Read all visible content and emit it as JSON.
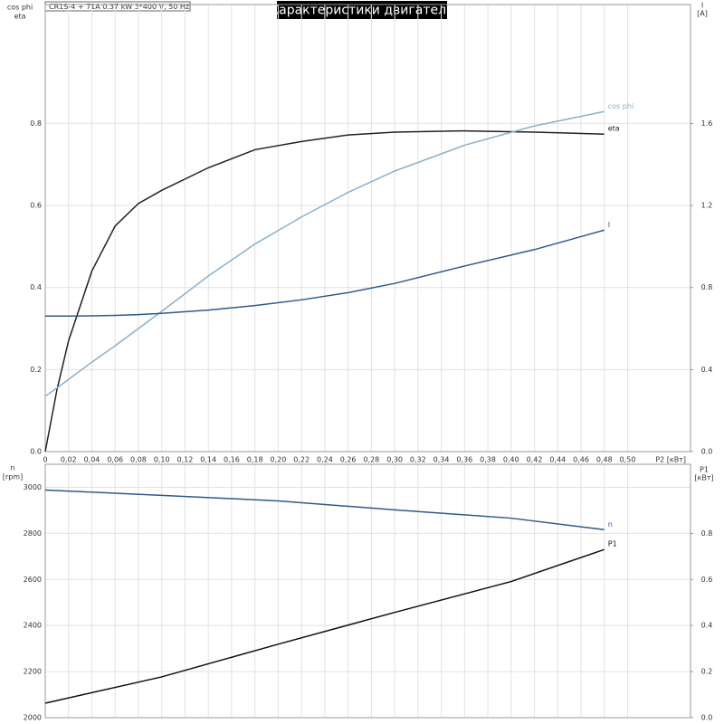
{
  "chart_data": [
    {
      "type": "line",
      "header": "CR1S-4 + 71A   0.37 kW   3*400 V, 50 Hz",
      "title": "Характеристики двигателя",
      "ylabel": [
        "cos phi",
        "eta"
      ],
      "y2label": [
        "I",
        "[A]"
      ],
      "xlabel": "P2 [кВт]",
      "x": [
        0,
        0.01,
        0.02,
        0.04,
        0.06,
        0.08,
        0.1,
        0.14,
        0.18,
        0.22,
        0.26,
        0.3,
        0.36,
        0.42,
        0.48
      ],
      "series": [
        {
          "name": "eta",
          "color": "#222222",
          "values": [
            0,
            0.15,
            0.27,
            0.44,
            0.55,
            0.605,
            0.637,
            0.692,
            0.736,
            0.756,
            0.772,
            0.779,
            0.782,
            0.779,
            0.774
          ]
        },
        {
          "name": "cos phi",
          "color": "#8ab0cc",
          "values": [
            0.135,
            0.155,
            0.176,
            0.218,
            0.258,
            0.3,
            0.342,
            0.428,
            0.506,
            0.572,
            0.632,
            0.684,
            0.747,
            0.794,
            0.829
          ]
        },
        {
          "name": "I",
          "color": "#2e5a8a",
          "axis": "y2",
          "values": [
            0.661,
            0.661,
            0.661,
            0.662,
            0.664,
            0.668,
            0.674,
            0.69,
            0.712,
            0.74,
            0.775,
            0.82,
            0.905,
            0.985,
            1.08
          ]
        }
      ],
      "xlim": [
        0,
        0.554
      ],
      "xticks": [
        0,
        {
          "value": 0.02,
          "label": "0,02"
        },
        {
          "value": 0.04,
          "label": "0,04"
        },
        {
          "value": 0.06,
          "label": "0,06"
        },
        {
          "value": 0.08,
          "label": "0,08"
        },
        {
          "value": 0.1,
          "label": "0,10"
        },
        {
          "value": 0.12,
          "label": "0,12"
        },
        {
          "value": 0.14,
          "label": "0,14"
        },
        {
          "value": 0.16,
          "label": "0,16"
        },
        {
          "value": 0.18,
          "label": "0,18"
        },
        {
          "value": 0.2,
          "label": "0,20"
        },
        {
          "value": 0.22,
          "label": "0,22"
        },
        {
          "value": 0.24,
          "label": "0,24"
        },
        {
          "value": 0.26,
          "label": "0,26"
        },
        {
          "value": 0.28,
          "label": "0,28"
        },
        {
          "value": 0.3,
          "label": "0,30"
        },
        {
          "value": 0.32,
          "label": "0,32"
        },
        {
          "value": 0.34,
          "label": "0,34"
        },
        {
          "value": 0.36,
          "label": "0,36"
        },
        {
          "value": 0.38,
          "label": "0,38"
        },
        {
          "value": 0.4,
          "label": "0,40"
        },
        {
          "value": 0.42,
          "label": "0,42"
        },
        {
          "value": 0.44,
          "label": "0,44"
        },
        {
          "value": 0.46,
          "label": "0,46"
        },
        {
          "value": 0.48,
          "label": "0,48"
        },
        {
          "value": 0.5,
          "label": "0,50"
        }
      ],
      "ylim": [
        0,
        1.09
      ],
      "yticks": [
        {
          "value": 0,
          "label": "0.0"
        },
        0.2,
        0.4,
        0.6,
        0.8
      ],
      "y2lim": [
        0,
        2.18
      ],
      "y2ticks": [
        {
          "value": 0,
          "label": "0.0"
        },
        0.4,
        0.8,
        1.2,
        1.6
      ],
      "grid": true
    },
    {
      "type": "line",
      "ylabel": [
        "n",
        "[rpm]"
      ],
      "y2label": [
        "P1",
        "[кВт]"
      ],
      "x": [
        0,
        0.1,
        0.2,
        0.3,
        0.4,
        0.48
      ],
      "series": [
        {
          "name": "n",
          "color": "#2e5a8a",
          "values": [
            2988,
            2965,
            2941,
            2902,
            2866,
            2816
          ]
        },
        {
          "name": "P1",
          "color": "#111111",
          "axis": "y2",
          "values": [
            0.063,
            0.177,
            0.319,
            0.457,
            0.591,
            0.73
          ]
        }
      ],
      "xlim": [
        0,
        0.554
      ],
      "ylim": [
        2000,
        3100
      ],
      "yticks": [
        2000,
        2200,
        2400,
        2600,
        2800,
        3000
      ],
      "y2lim": [
        0,
        1.1
      ],
      "y2ticks": [
        {
          "value": 0,
          "label": "0.0"
        },
        0.2,
        0.4,
        0.6,
        0.8
      ],
      "grid": true
    }
  ]
}
